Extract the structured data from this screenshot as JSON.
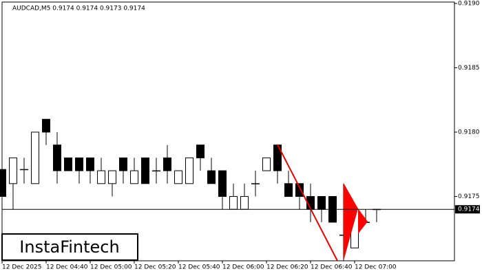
{
  "chart_data": {
    "type": "candlestick",
    "title": "AUDCAD,M5  0.9174 0.9174 0.9173 0.9174",
    "logo": "InstaFintech",
    "categories": [
      "12 Dec 2025",
      null,
      null,
      null,
      "12 Dec 04:40",
      null,
      null,
      null,
      "12 Dec 05:00",
      null,
      null,
      null,
      "12 Dec 05:20",
      null,
      null,
      null,
      "12 Dec 05:40",
      null,
      null,
      null,
      "12 Dec 06:00",
      null,
      null,
      null,
      "12 Dec 06:20",
      null,
      null,
      null,
      "12 Dec 06:40",
      null,
      null,
      null,
      "12 Dec 07:00",
      null,
      null
    ],
    "open": [
      0.91771,
      0.9176,
      0.91771,
      0.9176,
      0.9181,
      0.9179,
      0.9178,
      0.9178,
      0.9178,
      0.9176,
      0.9176,
      0.9178,
      0.9176,
      0.9178,
      0.9177,
      0.9178,
      0.9176,
      0.9176,
      0.9179,
      0.9177,
      0.9177,
      0.9174,
      0.9174,
      0.9176,
      0.9177,
      0.9179,
      0.9176,
      0.9176,
      0.9175,
      0.9175,
      0.9175,
      0.9172,
      0.9171,
      0.9173,
      0.9174
    ],
    "high": [
      0.9178,
      0.9178,
      0.9178,
      0.918,
      0.9181,
      0.918,
      0.9178,
      0.9178,
      0.9178,
      0.9178,
      0.9177,
      0.9178,
      0.9178,
      0.9178,
      0.9178,
      0.9179,
      0.9177,
      0.9178,
      0.9179,
      0.9178,
      0.9177,
      0.9176,
      0.9176,
      0.9177,
      0.9178,
      0.9179,
      0.9177,
      0.9176,
      0.9176,
      0.9175,
      0.9175,
      0.9176,
      0.9174,
      0.9174,
      0.9174
    ],
    "low": [
      0.91742,
      0.9174,
      0.9176,
      0.9176,
      0.9179,
      0.9176,
      0.9177,
      0.9176,
      0.9176,
      0.9176,
      0.9175,
      0.9176,
      0.9176,
      0.9176,
      0.9176,
      0.9176,
      0.9176,
      0.9176,
      0.9177,
      0.9176,
      0.9174,
      0.9174,
      0.9174,
      0.9175,
      0.9177,
      0.9176,
      0.9175,
      0.9174,
      0.9173,
      0.9173,
      0.9173,
      0.917,
      0.9171,
      0.9173,
      0.9173
    ],
    "close": [
      0.9175,
      0.9178,
      0.91771,
      0.918,
      0.918,
      0.9177,
      0.9177,
      0.9177,
      0.9177,
      0.9177,
      0.9177,
      0.9177,
      0.9177,
      0.9176,
      0.9177,
      0.9177,
      0.9177,
      0.9178,
      0.9178,
      0.9176,
      0.9175,
      0.9175,
      0.9175,
      0.9176,
      0.9178,
      0.9177,
      0.9175,
      0.9175,
      0.9174,
      0.9174,
      0.9173,
      0.9172,
      0.9174,
      0.9173,
      0.9174
    ],
    "last_price": 0.9174,
    "ylim": [
      0.917,
      0.919
    ],
    "yticks": [
      {
        "value": 0.919,
        "label": "0.9190"
      },
      0.9185,
      {
        "value": 0.918,
        "label": "0.9180"
      },
      0.9175
    ]
  }
}
